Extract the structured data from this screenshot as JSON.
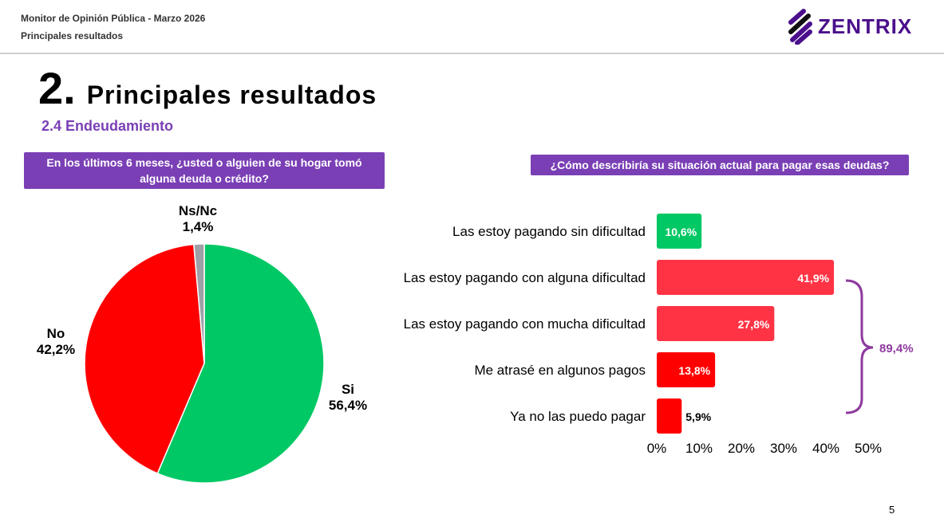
{
  "header": {
    "line1": "Monitor de Opinión Pública - Marzo 2026",
    "line2": "Principales resultados",
    "logo": "ZENTRIX"
  },
  "title": {
    "number": "2.",
    "text": "Principales resultados"
  },
  "subtitle": "2.4 Endeudamiento",
  "page_number": "5",
  "chart_data": [
    {
      "type": "pie",
      "title": "En los últimos 6 meses, ¿usted o alguien de su hogar tomó alguna deuda o crédito?",
      "slices": [
        {
          "label": "Si",
          "value": 56.4,
          "text": "56,4%",
          "color": "#00c864"
        },
        {
          "label": "No",
          "value": 42.2,
          "text": "42,2%",
          "color": "#ff0000"
        },
        {
          "label": "Ns/Nc",
          "value": 1.4,
          "text": "1,4%",
          "color": "#a0a0a8"
        }
      ]
    },
    {
      "type": "bar",
      "orientation": "horizontal",
      "title": "¿Cómo describiría su situación actual para pagar esas deudas?",
      "categories": [
        "Las estoy pagando sin dificultad",
        "Las estoy pagando con alguna dificultad",
        "Las estoy pagando con mucha dificultad",
        "Me atrasé en algunos pagos",
        "Ya no las puedo pagar"
      ],
      "values": [
        10.6,
        41.9,
        27.8,
        13.8,
        5.9
      ],
      "value_labels": [
        "10,6%",
        "41,9%",
        "27,8%",
        "13,8%",
        "5,9%"
      ],
      "colors": [
        "#00c864",
        "#ff3344",
        "#ff3344",
        "#ff0000",
        "#ff0000"
      ],
      "xlim": [
        0,
        50
      ],
      "xticks": [
        "0%",
        "10%",
        "20%",
        "30%",
        "40%",
        "50%"
      ],
      "annotation": {
        "text": "89,4%",
        "spans": [
          1,
          4
        ],
        "color": "#8e3a9e"
      }
    }
  ]
}
